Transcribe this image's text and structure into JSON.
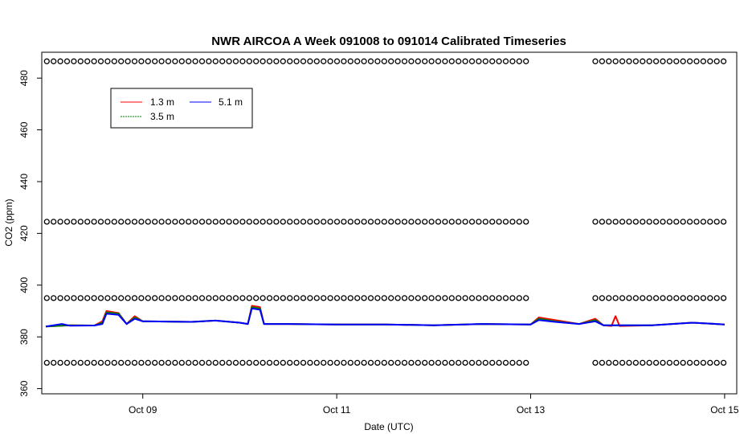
{
  "chart_data": {
    "type": "line",
    "title": "NWR AIRCOA A  Week 091008 to 091014  Calibrated Timeseries",
    "xlabel": "Date (UTC)",
    "ylabel": "CO2 (ppm)",
    "xlim": [
      "2009-10-07T23:00Z",
      "2009-10-15T03:00Z"
    ],
    "ylim": [
      358,
      490
    ],
    "xticks": [
      {
        "label": "Oct 09",
        "x": "2009-10-09T00:00Z"
      },
      {
        "label": "Oct 11",
        "x": "2009-10-11T00:00Z"
      },
      {
        "label": "Oct 13",
        "x": "2009-10-13T00:00Z"
      },
      {
        "label": "Oct 15",
        "x": "2009-10-15T00:00Z"
      }
    ],
    "yticks": [
      360,
      380,
      400,
      420,
      440,
      460,
      480
    ],
    "grid": false,
    "legend": {
      "position": "top-left",
      "columns": 2
    },
    "series": [
      {
        "name": "1.3 m",
        "color": "#ff0000",
        "points": [
          [
            "2009-10-08T00:00Z",
            384.0
          ],
          [
            "2009-10-08T06:00Z",
            384.5
          ],
          [
            "2009-10-08T12:00Z",
            384.4
          ],
          [
            "2009-10-08T14:00Z",
            386.0
          ],
          [
            "2009-10-08T15:00Z",
            390.0
          ],
          [
            "2009-10-08T18:00Z",
            389.2
          ],
          [
            "2009-10-08T20:00Z",
            385.0
          ],
          [
            "2009-10-08T22:00Z",
            388.0
          ],
          [
            "2009-10-09T00:00Z",
            386.0
          ],
          [
            "2009-10-09T12:00Z",
            385.8
          ],
          [
            "2009-10-09T18:00Z",
            386.3
          ],
          [
            "2009-10-10T00:00Z",
            385.5
          ],
          [
            "2009-10-10T02:00Z",
            385.0
          ],
          [
            "2009-10-10T03:00Z",
            392.0
          ],
          [
            "2009-10-10T05:00Z",
            391.5
          ],
          [
            "2009-10-10T06:00Z",
            385.0
          ],
          [
            "2009-10-10T12:00Z",
            385.0
          ],
          [
            "2009-10-11T00:00Z",
            384.8
          ],
          [
            "2009-10-11T12:00Z",
            384.8
          ],
          [
            "2009-10-12T00:00Z",
            384.5
          ],
          [
            "2009-10-12T12:00Z",
            385.0
          ],
          [
            "2009-10-13T00:00Z",
            384.8
          ],
          [
            "2009-10-13T02:00Z",
            387.5
          ],
          [
            "2009-10-13T06:00Z",
            386.5
          ],
          [
            "2009-10-13T12:00Z",
            385.0
          ],
          [
            "2009-10-13T16:00Z",
            387.0
          ],
          [
            "2009-10-13T18:00Z",
            384.5
          ],
          [
            "2009-10-13T20:00Z",
            384.2
          ],
          [
            "2009-10-13T21:00Z",
            388.0
          ],
          [
            "2009-10-13T22:00Z",
            384.2
          ],
          [
            "2009-10-14T06:00Z",
            384.5
          ],
          [
            "2009-10-14T16:00Z",
            385.5
          ],
          [
            "2009-10-15T00:00Z",
            384.8
          ]
        ]
      },
      {
        "name": "3.5 m",
        "color": "#008000",
        "points": [
          [
            "2009-10-08T00:00Z",
            384.0
          ],
          [
            "2009-10-08T06:00Z",
            384.5
          ],
          [
            "2009-10-08T12:00Z",
            384.4
          ],
          [
            "2009-10-08T14:00Z",
            385.5
          ],
          [
            "2009-10-08T15:00Z",
            389.5
          ],
          [
            "2009-10-08T18:00Z",
            389.0
          ],
          [
            "2009-10-08T20:00Z",
            385.0
          ],
          [
            "2009-10-08T22:00Z",
            387.5
          ],
          [
            "2009-10-09T00:00Z",
            386.0
          ],
          [
            "2009-10-09T12:00Z",
            385.8
          ],
          [
            "2009-10-09T18:00Z",
            386.3
          ],
          [
            "2009-10-10T00:00Z",
            385.5
          ],
          [
            "2009-10-10T02:00Z",
            385.0
          ],
          [
            "2009-10-10T03:00Z",
            391.5
          ],
          [
            "2009-10-10T05:00Z",
            391.0
          ],
          [
            "2009-10-10T06:00Z",
            385.0
          ],
          [
            "2009-10-10T12:00Z",
            385.0
          ],
          [
            "2009-10-11T00:00Z",
            384.8
          ],
          [
            "2009-10-11T12:00Z",
            384.8
          ],
          [
            "2009-10-12T00:00Z",
            384.5
          ],
          [
            "2009-10-12T12:00Z",
            385.0
          ],
          [
            "2009-10-13T00:00Z",
            384.8
          ],
          [
            "2009-10-13T02:00Z",
            387.0
          ],
          [
            "2009-10-13T06:00Z",
            386.0
          ],
          [
            "2009-10-13T12:00Z",
            385.0
          ],
          [
            "2009-10-13T16:00Z",
            386.5
          ],
          [
            "2009-10-13T18:00Z",
            384.5
          ],
          [
            "2009-10-14T06:00Z",
            384.5
          ],
          [
            "2009-10-14T16:00Z",
            385.5
          ],
          [
            "2009-10-15T00:00Z",
            384.8
          ]
        ]
      },
      {
        "name": "5.1 m",
        "color": "#0000ff",
        "points": [
          [
            "2009-10-08T00:00Z",
            384.0
          ],
          [
            "2009-10-08T04:00Z",
            385.0
          ],
          [
            "2009-10-08T06:00Z",
            384.3
          ],
          [
            "2009-10-08T12:00Z",
            384.4
          ],
          [
            "2009-10-08T14:00Z",
            385.0
          ],
          [
            "2009-10-08T15:00Z",
            389.0
          ],
          [
            "2009-10-08T18:00Z",
            388.5
          ],
          [
            "2009-10-08T20:00Z",
            385.0
          ],
          [
            "2009-10-08T22:00Z",
            387.0
          ],
          [
            "2009-10-09T00:00Z",
            386.0
          ],
          [
            "2009-10-09T12:00Z",
            385.8
          ],
          [
            "2009-10-09T18:00Z",
            386.3
          ],
          [
            "2009-10-10T00:00Z",
            385.5
          ],
          [
            "2009-10-10T02:00Z",
            385.0
          ],
          [
            "2009-10-10T03:00Z",
            391.0
          ],
          [
            "2009-10-10T05:00Z",
            390.5
          ],
          [
            "2009-10-10T06:00Z",
            385.0
          ],
          [
            "2009-10-10T12:00Z",
            385.0
          ],
          [
            "2009-10-11T00:00Z",
            384.8
          ],
          [
            "2009-10-11T12:00Z",
            384.8
          ],
          [
            "2009-10-12T00:00Z",
            384.5
          ],
          [
            "2009-10-12T12:00Z",
            385.0
          ],
          [
            "2009-10-13T00:00Z",
            384.8
          ],
          [
            "2009-10-13T02:00Z",
            386.5
          ],
          [
            "2009-10-13T06:00Z",
            385.8
          ],
          [
            "2009-10-13T12:00Z",
            385.0
          ],
          [
            "2009-10-13T16:00Z",
            386.0
          ],
          [
            "2009-10-13T18:00Z",
            384.5
          ],
          [
            "2009-10-14T06:00Z",
            384.5
          ],
          [
            "2009-10-14T16:00Z",
            385.5
          ],
          [
            "2009-10-15T00:00Z",
            384.8
          ]
        ]
      }
    ],
    "reference_markers": {
      "symbol": "open-circle",
      "color": "#000000",
      "levels_ppm": [
        370.0,
        395.0,
        424.5,
        486.5
      ],
      "segments": [
        [
          "2009-10-08T00:15Z",
          "2009-10-13T00:30Z"
        ],
        [
          "2009-10-13T16:00Z",
          "2009-10-14T23:50Z"
        ]
      ]
    }
  }
}
